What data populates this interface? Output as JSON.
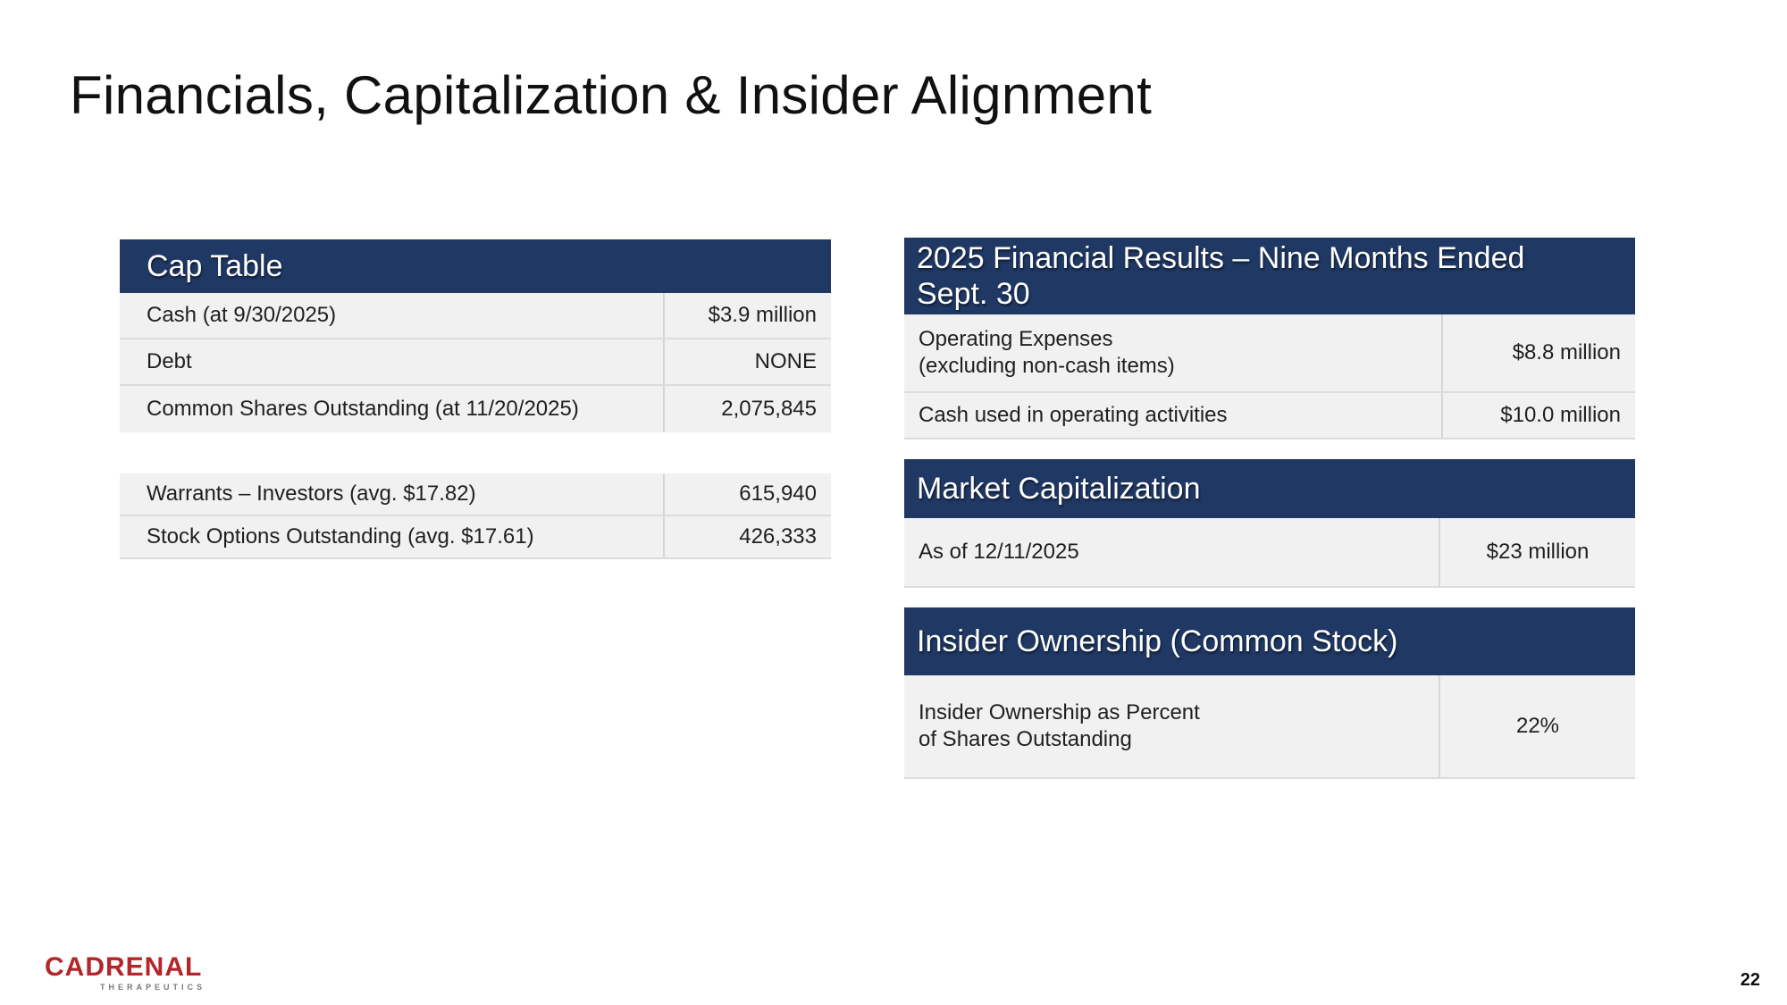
{
  "title": "Financials, Capitalization & Insider Alignment",
  "cap_table": {
    "header": "Cap Table",
    "rows": [
      {
        "label": "Cash (at 9/30/2025)",
        "value": "$3.9 million"
      },
      {
        "label": "Debt",
        "value": "NONE"
      },
      {
        "label": "Common Shares Outstanding (at 11/20/2025)",
        "value": "2,075,845"
      }
    ],
    "rows2": [
      {
        "label": "Warrants – Investors (avg. $17.82)",
        "value": "615,940"
      },
      {
        "label": "Stock Options Outstanding (avg. $17.61)",
        "value": "426,333"
      }
    ]
  },
  "financial_results": {
    "header_line1": "2025 Financial Results – Nine Months Ended",
    "header_line2": "Sept. 30",
    "rows": [
      {
        "label_line1": "Operating Expenses",
        "label_line2": "(excluding non-cash items)",
        "value": "$8.8 million"
      },
      {
        "label": "Cash used in operating activities",
        "value": "$10.0 million"
      }
    ]
  },
  "market_cap": {
    "header": "Market Capitalization",
    "rows": [
      {
        "label": "As of 12/11/2025",
        "value": "$23 million"
      }
    ]
  },
  "insider": {
    "header": "Insider Ownership (Common Stock)",
    "rows": [
      {
        "label_line1": "Insider Ownership as Percent",
        "label_line2": "of Shares Outstanding",
        "value": "22%"
      }
    ]
  },
  "logo": {
    "word": "CADRENAL",
    "sub": "THERAPEUTICS",
    "color": "#b3262a"
  },
  "page_number": "22",
  "colors": {
    "header_bg": "#1f3864",
    "row_bg": "#f1f1f1"
  }
}
